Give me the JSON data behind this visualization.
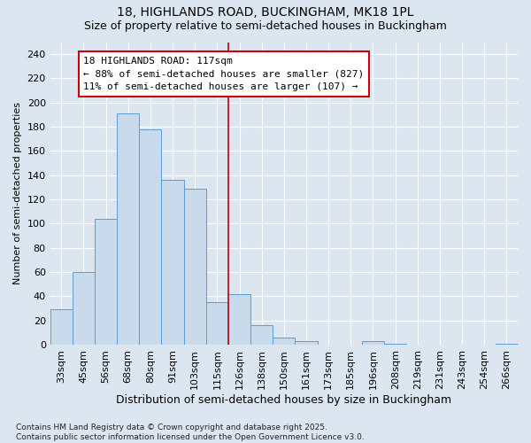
{
  "title": "18, HIGHLANDS ROAD, BUCKINGHAM, MK18 1PL",
  "subtitle": "Size of property relative to semi-detached houses in Buckingham",
  "xlabel": "Distribution of semi-detached houses by size in Buckingham",
  "ylabel": "Number of semi-detached properties",
  "categories": [
    "33sqm",
    "45sqm",
    "56sqm",
    "68sqm",
    "80sqm",
    "91sqm",
    "103sqm",
    "115sqm",
    "126sqm",
    "138sqm",
    "150sqm",
    "161sqm",
    "173sqm",
    "185sqm",
    "196sqm",
    "208sqm",
    "219sqm",
    "231sqm",
    "243sqm",
    "254sqm",
    "266sqm"
  ],
  "values": [
    29,
    60,
    104,
    191,
    178,
    136,
    129,
    35,
    42,
    16,
    6,
    3,
    0,
    0,
    3,
    1,
    0,
    0,
    0,
    0,
    1
  ],
  "bar_color": "#c9daea",
  "bar_edge_color": "#5b9bd5",
  "highlight_index": 7,
  "annotation_title": "18 HIGHLANDS ROAD: 117sqm",
  "annotation_line1": "← 88% of semi-detached houses are smaller (827)",
  "annotation_line2": "11% of semi-detached houses are larger (107) →",
  "annotation_box_color": "#ffffff",
  "annotation_box_edge_color": "#cc0000",
  "vline_color": "#cc0000",
  "ylim": [
    0,
    250
  ],
  "yticks": [
    0,
    20,
    40,
    60,
    80,
    100,
    120,
    140,
    160,
    180,
    200,
    220,
    240
  ],
  "background_color": "#dce6f1",
  "plot_background_color": "#dce6f1",
  "footer": "Contains HM Land Registry data © Crown copyright and database right 2025.\nContains public sector information licensed under the Open Government Licence v3.0.",
  "title_fontsize": 10,
  "subtitle_fontsize": 9,
  "xlabel_fontsize": 9,
  "ylabel_fontsize": 8,
  "tick_fontsize": 8,
  "annotation_fontsize": 8,
  "footer_fontsize": 6.5
}
